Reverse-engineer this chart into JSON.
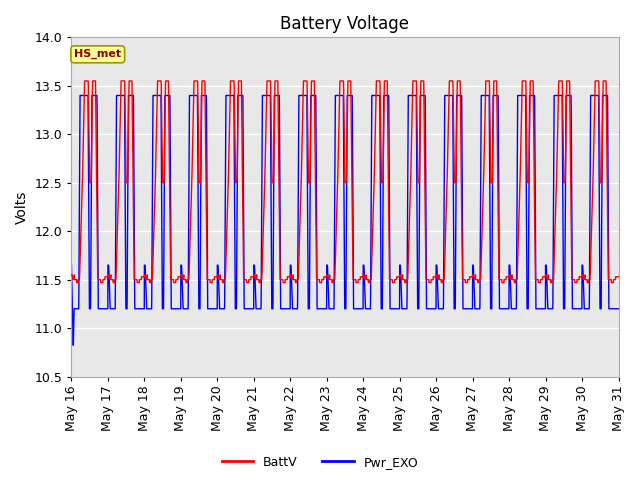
{
  "title": "Battery Voltage",
  "ylabel": "Volts",
  "fig_bg_color": "#ffffff",
  "plot_bg_color": "#e8e8e8",
  "grid_color": "white",
  "batt_color": "red",
  "exo_color": "blue",
  "ylim": [
    10.5,
    14.0
  ],
  "yticks": [
    10.5,
    11.0,
    11.5,
    12.0,
    12.5,
    13.0,
    13.5,
    14.0
  ],
  "legend_labels": [
    "BattV",
    "Pwr_EXO"
  ],
  "station_label": "HS_met",
  "num_days": 15,
  "day_start": 16,
  "day_end": 31,
  "title_fontsize": 12,
  "axis_fontsize": 9,
  "ylabel_fontsize": 10
}
